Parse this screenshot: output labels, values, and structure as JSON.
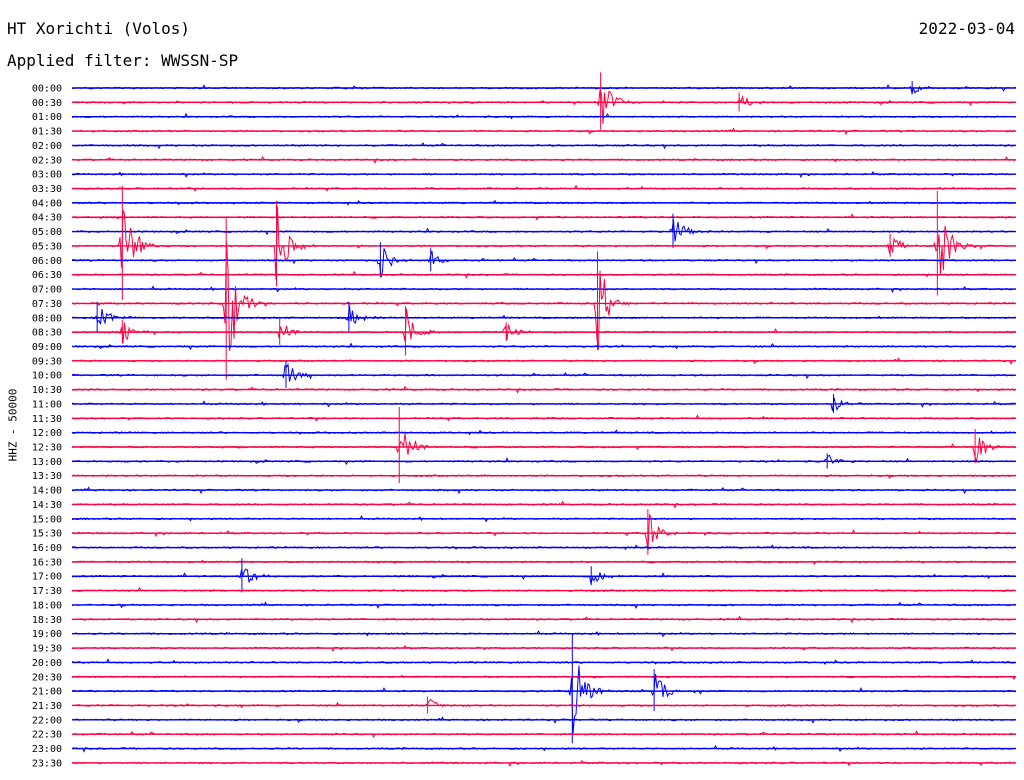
{
  "header": {
    "title": "HT Xorichti (Volos)",
    "date": "2022-03-04",
    "filter": "Applied filter: WWSSN-SP"
  },
  "station_label": "HHZ - 50000",
  "colors": {
    "blue": "#0000ff",
    "red": "#ff0040",
    "background": "#ffffff"
  },
  "chart_data": {
    "type": "line",
    "title": "",
    "ylabel": "HHZ - 50000",
    "row_labels": [
      "00:00",
      "00:30",
      "01:00",
      "01:30",
      "02:00",
      "02:30",
      "03:00",
      "03:30",
      "04:00",
      "04:30",
      "05:00",
      "05:30",
      "06:00",
      "06:30",
      "07:00",
      "07:30",
      "08:00",
      "08:30",
      "09:00",
      "09:30",
      "10:00",
      "10:30",
      "11:00",
      "11:30",
      "12:00",
      "12:30",
      "13:00",
      "13:30",
      "14:00",
      "14:30",
      "15:00",
      "15:30",
      "16:00",
      "16:30",
      "17:00",
      "17:30",
      "18:00",
      "18:30",
      "19:00",
      "19:30",
      "20:00",
      "20:30",
      "21:00",
      "21:30",
      "22:00",
      "22:30",
      "23:00",
      "23:30"
    ],
    "row_minutes": 30,
    "row_colors": [
      "blue",
      "red"
    ],
    "events": [
      {
        "row": "00:00",
        "minute": 26.7,
        "amplitude": 7
      },
      {
        "row": "00:30",
        "minute": 16.8,
        "amplitude": 30
      },
      {
        "row": "00:30",
        "minute": 21.2,
        "amplitude": 10
      },
      {
        "row": "05:00",
        "minute": 19.1,
        "amplitude": 18
      },
      {
        "row": "05:30",
        "minute": 1.6,
        "amplitude": 60
      },
      {
        "row": "05:30",
        "minute": 6.5,
        "amplitude": 45
      },
      {
        "row": "05:30",
        "minute": 26.0,
        "amplitude": 12
      },
      {
        "row": "05:30",
        "minute": 27.5,
        "amplitude": 55
      },
      {
        "row": "06:00",
        "minute": 9.8,
        "amplitude": 18
      },
      {
        "row": "06:00",
        "minute": 11.4,
        "amplitude": 12
      },
      {
        "row": "07:30",
        "minute": 4.9,
        "amplitude": 85
      },
      {
        "row": "07:30",
        "minute": 16.7,
        "amplitude": 52
      },
      {
        "row": "08:00",
        "minute": 0.8,
        "amplitude": 16
      },
      {
        "row": "08:00",
        "minute": 8.8,
        "amplitude": 16
      },
      {
        "row": "08:30",
        "minute": 1.6,
        "amplitude": 12
      },
      {
        "row": "08:30",
        "minute": 6.6,
        "amplitude": 14
      },
      {
        "row": "08:30",
        "minute": 10.6,
        "amplitude": 26
      },
      {
        "row": "08:30",
        "minute": 13.8,
        "amplitude": 10
      },
      {
        "row": "10:00",
        "minute": 6.8,
        "amplitude": 14
      },
      {
        "row": "11:00",
        "minute": 24.2,
        "amplitude": 10
      },
      {
        "row": "12:30",
        "minute": 10.4,
        "amplitude": 40
      },
      {
        "row": "12:30",
        "minute": 28.7,
        "amplitude": 18
      },
      {
        "row": "13:00",
        "minute": 24.0,
        "amplitude": 8
      },
      {
        "row": "15:30",
        "minute": 18.3,
        "amplitude": 24
      },
      {
        "row": "17:00",
        "minute": 5.4,
        "amplitude": 18
      },
      {
        "row": "17:00",
        "minute": 16.5,
        "amplitude": 10
      },
      {
        "row": "21:00",
        "minute": 15.9,
        "amplitude": 58
      },
      {
        "row": "21:00",
        "minute": 18.5,
        "amplitude": 22
      },
      {
        "row": "21:30",
        "minute": 11.3,
        "amplitude": 9
      }
    ]
  }
}
